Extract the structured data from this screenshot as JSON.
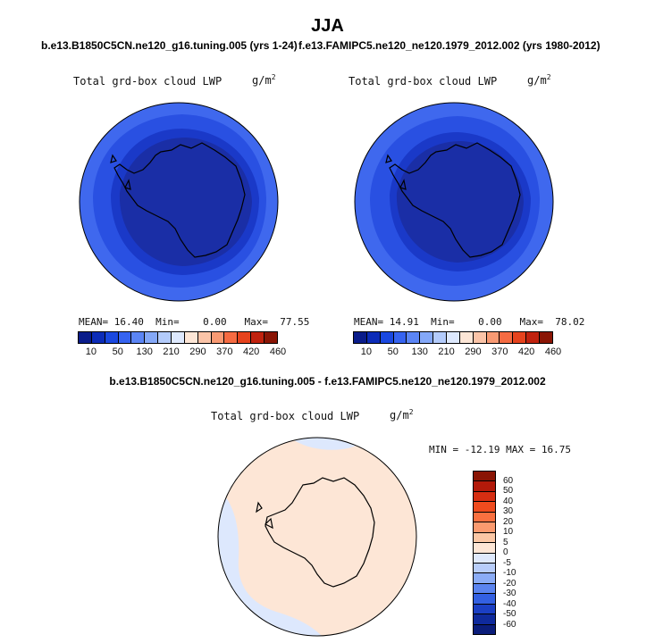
{
  "figure": {
    "season": "JJA",
    "case_left": "b.e13.B1850C5CN.ne120_g16.tuning.005 (yrs 1-24)",
    "case_right": "f.e13.FAMIPC5.ne120_ne120.1979_2012.002 (yrs 1980-2012)",
    "diff_title": "b.e13.B1850C5CN.ne120_g16.tuning.005 - f.e13.FAMIPC5.ne120_ne120.1979_2012.002"
  },
  "panels": [
    {
      "label": "Total grd-box cloud LWP",
      "units": "g/m",
      "units_exp": "2",
      "mean_label": "MEAN=",
      "mean": "16.40",
      "min_label": "Min=",
      "min": "0.00",
      "max_label": "Max=",
      "max": "77.55"
    },
    {
      "label": "Total grd-box cloud LWP",
      "units": "g/m",
      "units_exp": "2",
      "mean_label": "MEAN=",
      "mean": "14.91",
      "min_label": "Min=",
      "min": "0.00",
      "max_label": "Max=",
      "max": "78.02"
    }
  ],
  "diff_panel": {
    "label": "Total grd-box cloud LWP",
    "units": "g/m",
    "units_exp": "2",
    "minmax": "MIN = -12.19 MAX =  16.75"
  },
  "colorbar_top": {
    "tick_labels": [
      "10",
      "50",
      "130",
      "210",
      "290",
      "370",
      "420",
      "460"
    ],
    "colors": [
      "#0a1c8a",
      "#0c2cb8",
      "#1a48e0",
      "#3663f0",
      "#5b85f5",
      "#84a8f8",
      "#b3cbfb",
      "#dde8fd",
      "#fde6d6",
      "#fbc4a8",
      "#f99a73",
      "#f56b42",
      "#e6431d",
      "#c0220e",
      "#8a1505"
    ]
  },
  "colorbar_diff": {
    "tick_labels": [
      "60",
      "50",
      "40",
      "30",
      "20",
      "10",
      "5",
      "0",
      "-5",
      "-10",
      "-20",
      "-30",
      "-40",
      "-50",
      "-60"
    ],
    "colors": [
      "#8a1505",
      "#b31a0a",
      "#d62e12",
      "#ef4b1e",
      "#fa7040",
      "#fb9a6f",
      "#fbc7a5",
      "#fde6d6",
      "#dfe9fc",
      "#b8cdfa",
      "#8bacf6",
      "#5b84ef",
      "#3360e2",
      "#1b3fc4",
      "#0f2a9c",
      "#0b1d7a"
    ]
  },
  "map_colors": {
    "outer_ring": "#3f68ee",
    "mid_ring": "#2950e2",
    "inner_ring": "#1a39c8",
    "core": "#1a2ea6",
    "diff_background": "#fde6d6",
    "diff_warm": "#fbc4a8",
    "diff_cool": "#dde8fd"
  }
}
